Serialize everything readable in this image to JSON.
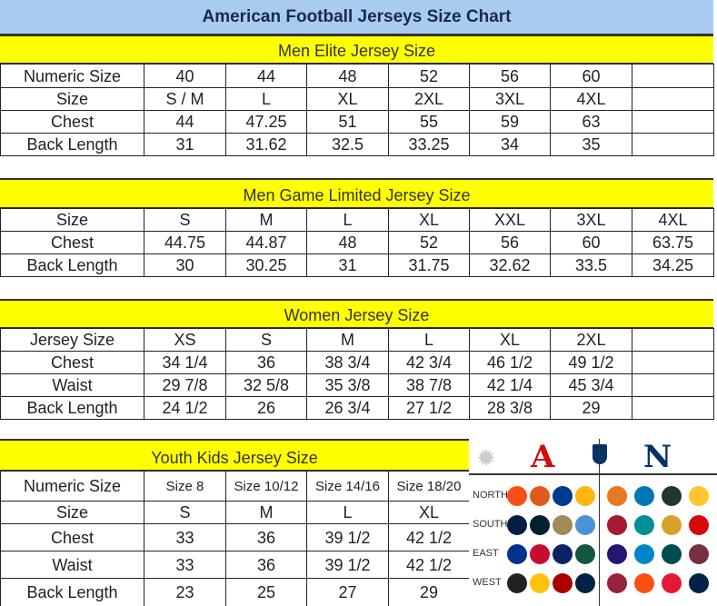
{
  "title": "American Football Jerseys Size Chart",
  "sections": [
    {
      "heading": "Men Elite Jersey Size",
      "rows": [
        [
          "Numeric Size",
          "40",
          "44",
          "48",
          "52",
          "56",
          "60",
          ""
        ],
        [
          "Size",
          "S / M",
          "L",
          "XL",
          "2XL",
          "3XL",
          "4XL",
          ""
        ],
        [
          "Chest",
          "44",
          "47.25",
          "51",
          "55",
          "59",
          "63",
          ""
        ],
        [
          "Back Length",
          "31",
          "31.62",
          "32.5",
          "33.25",
          "34",
          "35",
          ""
        ]
      ]
    },
    {
      "heading": "Men Game Limited Jersey Size",
      "rows": [
        [
          "Size",
          "S",
          "M",
          "L",
          "XL",
          "XXL",
          "3XL",
          "4XL"
        ],
        [
          "Chest",
          "44.75",
          "44.87",
          "48",
          "52",
          "56",
          "60",
          "63.75"
        ],
        [
          "Back Length",
          "30",
          "30.25",
          "31",
          "31.75",
          "32.62",
          "33.5",
          "34.25"
        ]
      ]
    },
    {
      "heading": "Women Jersey Size",
      "rows": [
        [
          "Jersey Size",
          "XS",
          "S",
          "M",
          "L",
          "XL",
          "2XL",
          ""
        ],
        [
          "Chest",
          "34 1/4",
          "36",
          "38 3/4",
          "42 3/4",
          "46 1/2",
          "49 1/2",
          ""
        ],
        [
          "Waist",
          "29 7/8",
          "32 5/8",
          "35 3/8",
          "38 7/8",
          "42 1/4",
          "45 3/4",
          ""
        ],
        [
          "Back Length",
          "24 1/2",
          "26",
          "26 3/4",
          "27 1/2",
          "28 3/8",
          "29",
          ""
        ]
      ]
    },
    {
      "heading": "Youth Kids Jersey Size",
      "rows": [
        [
          "Numeric Size",
          "Size 8",
          "Size 10/12",
          "Size 14/16",
          "Size 18/20"
        ],
        [
          "Size",
          "S",
          "M",
          "L",
          "XL"
        ],
        [
          "Chest",
          "33",
          "36",
          "39 1/2",
          "42 1/2"
        ],
        [
          "Waist",
          "33",
          "36",
          "39 1/2",
          "42 1/2"
        ],
        [
          "Back Length",
          "23",
          "25",
          "27",
          "29"
        ]
      ]
    }
  ],
  "colors": {
    "title_bg": "#aacbf0",
    "band_bg": "#ffff00",
    "afc": "#d50a0a",
    "nfc": "#013369"
  },
  "logos": {
    "afc_letter": "A",
    "nfc_letter": "N",
    "divisions": [
      "NORTH",
      "SOUTH",
      "EAST",
      "WEST"
    ],
    "afc": [
      [
        "bengals-logo",
        "#fb4f14"
      ],
      [
        "browns-logo",
        "#e05a1a"
      ],
      [
        "colts-logo",
        "#003a8c"
      ],
      [
        "steelers-logo",
        "#ffb612"
      ],
      [
        "cowboys-logo",
        "#041e42"
      ],
      [
        "texans-logo",
        "#03202f"
      ],
      [
        "saints-logo",
        "#a08a58"
      ],
      [
        "titans-logo",
        "#4b92db"
      ],
      [
        "bills-logo",
        "#00338d"
      ],
      [
        "patriots-logo",
        "#c60c30"
      ],
      [
        "giants-logo",
        "#0b2265"
      ],
      [
        "jets-logo",
        "#125740"
      ],
      [
        "raiders-logo",
        "#222222"
      ],
      [
        "chargers-logo",
        "#ffc20e"
      ],
      [
        "49ers-logo",
        "#aa0000"
      ],
      [
        "seahawks-logo",
        "#002244"
      ]
    ],
    "nfc": [
      [
        "bears-logo",
        "#e87722"
      ],
      [
        "lions-logo",
        "#0076b6"
      ],
      [
        "packers-logo",
        "#203731"
      ],
      [
        "vikings-logo",
        "#ffc62f"
      ],
      [
        "falcons-logo",
        "#a71930"
      ],
      [
        "dolphins-logo",
        "#008e97"
      ],
      [
        "jaguars-logo",
        "#d7a22a"
      ],
      [
        "buccaneers-logo",
        "#d50a0a"
      ],
      [
        "ravens-logo",
        "#241773"
      ],
      [
        "panthers-logo",
        "#0085ca"
      ],
      [
        "eagles-logo",
        "#004c54"
      ],
      [
        "redskins-logo",
        "#773141"
      ],
      [
        "cardinals-logo",
        "#97233f"
      ],
      [
        "broncos-logo",
        "#fb4f14"
      ],
      [
        "chiefs-logo",
        "#e31837"
      ],
      [
        "rams-logo",
        "#002244"
      ]
    ]
  }
}
